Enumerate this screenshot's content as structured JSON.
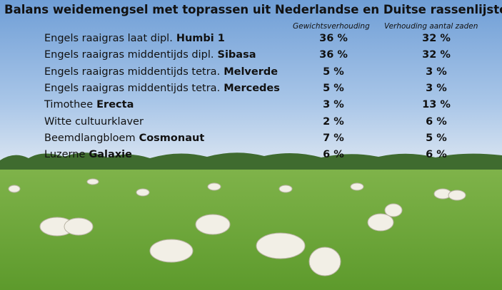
{
  "title": "Balans weidemengsel met toprassen uit Nederlandse en Duitse rassenlijsten:",
  "table": {
    "headers": [
      "Gewichtsverhouding",
      "Verhouding aantal zaden"
    ],
    "rows": [
      {
        "name": "Engels raaigras laat dipl.",
        "variety": "Humbi 1",
        "cells": [
          "36 %",
          "32 %"
        ]
      },
      {
        "name": "Engels raaigras middentijds dipl.",
        "variety": "Sibasa",
        "cells": [
          "36 %",
          "32 %"
        ]
      },
      {
        "name": "Engels raaigras middentijds tetra.",
        "variety": "Melverde",
        "cells": [
          "5 %",
          "3 %"
        ]
      },
      {
        "name": "Engels raaigras middentijds tetra.",
        "variety": "Mercedes",
        "cells": [
          "5 %",
          "3 %"
        ]
      },
      {
        "name": "Timothee",
        "variety": "Erecta",
        "cells": [
          "3 %",
          "13 %"
        ]
      },
      {
        "name": "Witte cultuurklaver",
        "cells": [
          "2 %",
          "6 %"
        ]
      },
      {
        "name": "Beemdlangbloem",
        "variety": "Cosmonaut",
        "cells": [
          "7 %",
          "5 %"
        ]
      },
      {
        "name": "Luzerne",
        "variety": "Galaxie",
        "cells": [
          "6 %",
          "6 %"
        ]
      }
    ]
  }
}
